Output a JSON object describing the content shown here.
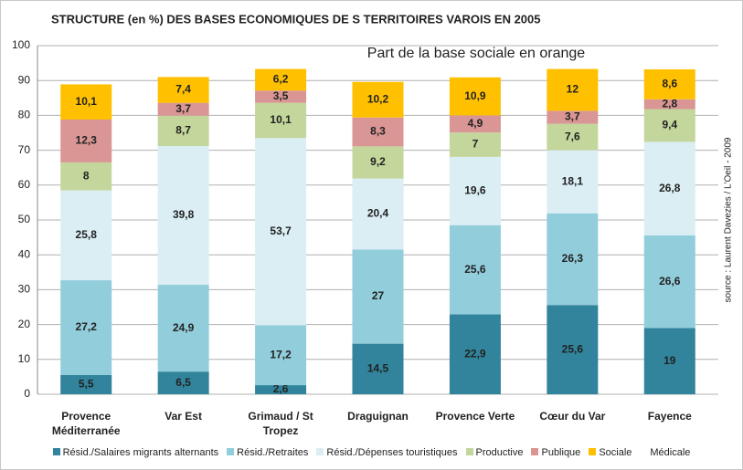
{
  "chart_data": {
    "type": "stacked_bar",
    "title": "STRUCTURE (en %) DES BASES ECONOMIQUES DE S TERRITOIRES VAROIS EN 2005",
    "subtitle": "Part de la base sociale en orange",
    "source": "source : Laurent Davezies / L'Oeil - 2009",
    "categories": [
      "Provence Méditerranée",
      "Var Est",
      "Grimaud / St Tropez",
      "Draguignan",
      "Provence Verte",
      "Cœur du Var",
      "Fayence"
    ],
    "series": [
      {
        "name": "Résid./Salaires migrants alternants",
        "color": "#31849b",
        "values": [
          5.5,
          6.5,
          2.6,
          14.5,
          22.9,
          25.6,
          19
        ],
        "value_labels": [
          "5,5",
          "6,5",
          "2,6",
          "14,5",
          "22,9",
          "25,6",
          "19"
        ]
      },
      {
        "name": "Résid./Retraites",
        "color": "#92cddc",
        "values": [
          27.2,
          24.9,
          17.2,
          27,
          25.6,
          26.3,
          26.6
        ],
        "value_labels": [
          "27,2",
          "24,9",
          "17,2",
          "27",
          "25,6",
          "26,3",
          "26,6"
        ]
      },
      {
        "name": "Résid./Dépenses touristiques",
        "color": "#daeef3",
        "values": [
          25.8,
          39.8,
          53.7,
          20.4,
          19.6,
          18.1,
          26.8
        ],
        "value_labels": [
          "25,8",
          "39,8",
          "53,7",
          "20,4",
          "19,6",
          "18,1",
          "26,8"
        ]
      },
      {
        "name": "Productive",
        "color": "#c3d69b",
        "values": [
          8,
          8.7,
          10.1,
          9.2,
          7,
          7.6,
          9.4
        ],
        "value_labels": [
          "8",
          "8,7",
          "10,1",
          "9,2",
          "7",
          "7,6",
          "9,4"
        ]
      },
      {
        "name": "Publique",
        "color": "#d99694",
        "values": [
          12.3,
          3.7,
          3.5,
          8.3,
          4.9,
          3.7,
          2.8
        ],
        "value_labels": [
          "12,3",
          "3,7",
          "3,5",
          "8,3",
          "4,9",
          "3,7",
          "2,8"
        ]
      },
      {
        "name": "Sociale",
        "color": "#ffc000",
        "values": [
          10.1,
          7.4,
          6.2,
          10.2,
          10.9,
          12,
          8.6
        ],
        "value_labels": [
          "10,1",
          "7,4",
          "6,2",
          "10,2",
          "10,9",
          "12",
          "8,6"
        ]
      },
      {
        "name": "Médicale",
        "color": "#ffffff",
        "values": [
          null,
          null,
          null,
          null,
          null,
          null,
          null
        ]
      }
    ],
    "ylim": [
      0,
      100
    ],
    "yticks": [
      0,
      10,
      20,
      30,
      40,
      50,
      60,
      70,
      80,
      90,
      100
    ],
    "grid": true
  }
}
